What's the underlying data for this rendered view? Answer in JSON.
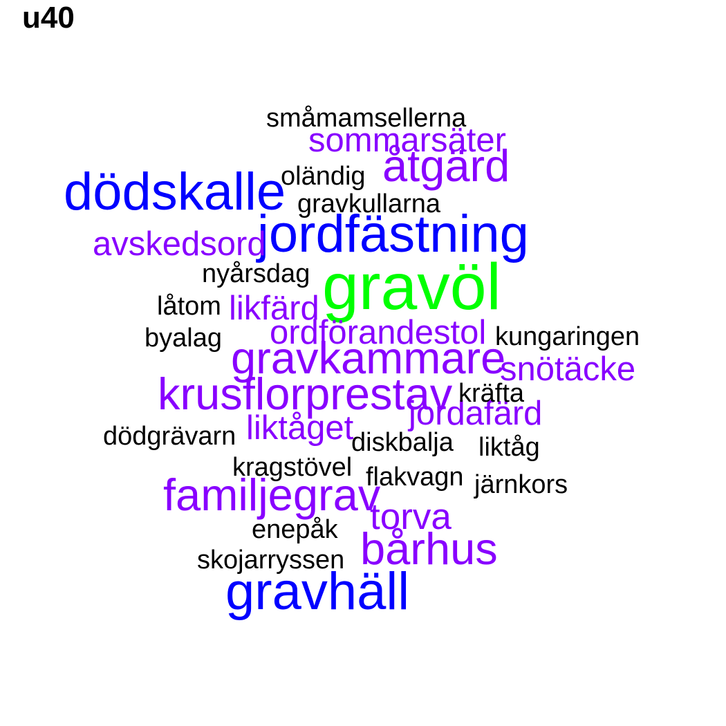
{
  "chart_data": {
    "type": "wordcloud",
    "title": "u40",
    "colors": {
      "tier1": "#00ff00",
      "tier2": "#0000ff",
      "tier3": "#8800ff",
      "tier4": "#000000"
    },
    "words": [
      {
        "text": "gravöl",
        "weight": 5,
        "tier": "tier1"
      },
      {
        "text": "dödskalle",
        "weight": 4,
        "tier": "tier2"
      },
      {
        "text": "jordfästning",
        "weight": 4,
        "tier": "tier2"
      },
      {
        "text": "gravhäll",
        "weight": 4,
        "tier": "tier2"
      },
      {
        "text": "gravkammare",
        "weight": 3.4,
        "tier": "tier3"
      },
      {
        "text": "krusflorprestav",
        "weight": 3.4,
        "tier": "tier3"
      },
      {
        "text": "familjegrav",
        "weight": 3.4,
        "tier": "tier3"
      },
      {
        "text": "bårhus",
        "weight": 3.4,
        "tier": "tier3"
      },
      {
        "text": "åtgärd",
        "weight": 3.4,
        "tier": "tier3"
      },
      {
        "text": "torva",
        "weight": 2.8,
        "tier": "tier3"
      },
      {
        "text": "sommarsäter",
        "weight": 2.6,
        "tier": "tier3"
      },
      {
        "text": "avskedsord",
        "weight": 2.6,
        "tier": "tier3"
      },
      {
        "text": "likfärd",
        "weight": 2.6,
        "tier": "tier3"
      },
      {
        "text": "ordförandestol",
        "weight": 2.6,
        "tier": "tier3"
      },
      {
        "text": "snötäcke",
        "weight": 2.6,
        "tier": "tier3"
      },
      {
        "text": "jordafärd",
        "weight": 2.6,
        "tier": "tier3"
      },
      {
        "text": "liktåget",
        "weight": 2.6,
        "tier": "tier3"
      },
      {
        "text": "småmamsellerna",
        "weight": 2,
        "tier": "tier4"
      },
      {
        "text": "oländig",
        "weight": 2,
        "tier": "tier4"
      },
      {
        "text": "gravkullarna",
        "weight": 2,
        "tier": "tier4"
      },
      {
        "text": "nyårsdag",
        "weight": 2,
        "tier": "tier4"
      },
      {
        "text": "låtom",
        "weight": 2,
        "tier": "tier4"
      },
      {
        "text": "byalag",
        "weight": 2,
        "tier": "tier4"
      },
      {
        "text": "kungaringen",
        "weight": 2,
        "tier": "tier4"
      },
      {
        "text": "kräfta",
        "weight": 2,
        "tier": "tier4"
      },
      {
        "text": "dödgrävarn",
        "weight": 2,
        "tier": "tier4"
      },
      {
        "text": "diskbalja",
        "weight": 2,
        "tier": "tier4"
      },
      {
        "text": "liktåg",
        "weight": 2,
        "tier": "tier4"
      },
      {
        "text": "kragstövel",
        "weight": 2,
        "tier": "tier4"
      },
      {
        "text": "flakvagn",
        "weight": 2,
        "tier": "tier4"
      },
      {
        "text": "järnkors",
        "weight": 2,
        "tier": "tier4"
      },
      {
        "text": "enepåk",
        "weight": 2,
        "tier": "tier4"
      },
      {
        "text": "skojarryssen",
        "weight": 2,
        "tier": "tier4"
      }
    ]
  }
}
